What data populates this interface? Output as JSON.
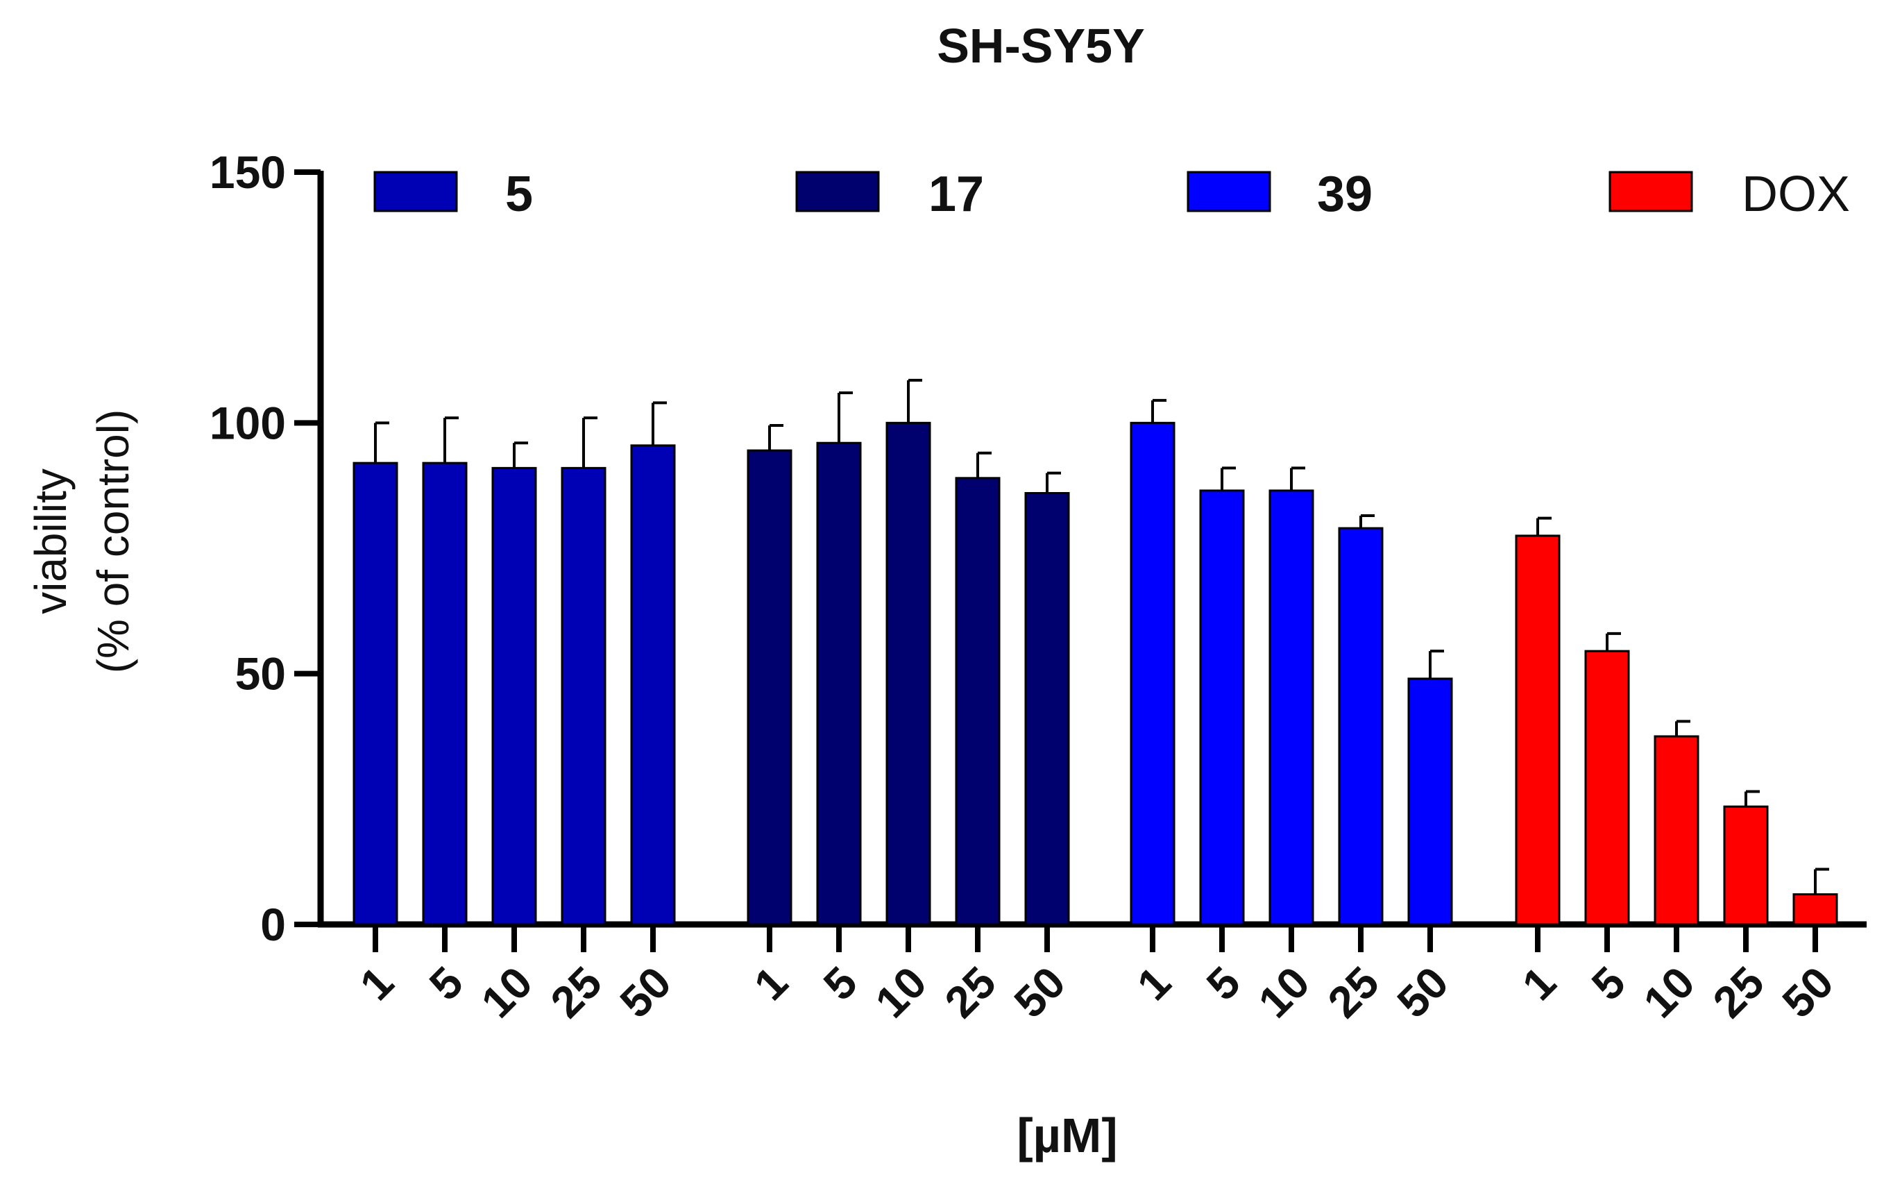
{
  "chart_data": {
    "type": "bar",
    "title": "SH-SY5Y",
    "ylabel_line1": "viability",
    "ylabel_line2": "(% of control)",
    "xlabel": "[µM]",
    "ylim": [
      0,
      150
    ],
    "yticks": [
      0,
      50,
      100,
      150
    ],
    "concentrations": [
      "1",
      "5",
      "10",
      "25",
      "50"
    ],
    "series": [
      {
        "name": "5",
        "label_style": "bold",
        "color": "#0000B4",
        "values": [
          92,
          92,
          91,
          91,
          95.5
        ],
        "errors": [
          8,
          9,
          5,
          10,
          8.5
        ]
      },
      {
        "name": "17",
        "label_style": "bold",
        "color": "#00006E",
        "values": [
          94.5,
          96,
          100,
          89,
          86
        ],
        "errors": [
          5,
          10,
          8.5,
          5,
          4
        ]
      },
      {
        "name": "39",
        "label_style": "bold",
        "color": "#0000FF",
        "values": [
          100,
          86.5,
          86.5,
          79,
          49
        ],
        "errors": [
          4.5,
          4.5,
          4.5,
          2.5,
          5.5
        ]
      },
      {
        "name": "DOX",
        "label_style": "normal",
        "color": "#FF0000",
        "values": [
          77.5,
          54.5,
          37.5,
          23.5,
          6
        ],
        "errors": [
          3.5,
          3.5,
          3,
          3,
          5
        ]
      }
    ],
    "grid": false,
    "legend_position": "top"
  }
}
